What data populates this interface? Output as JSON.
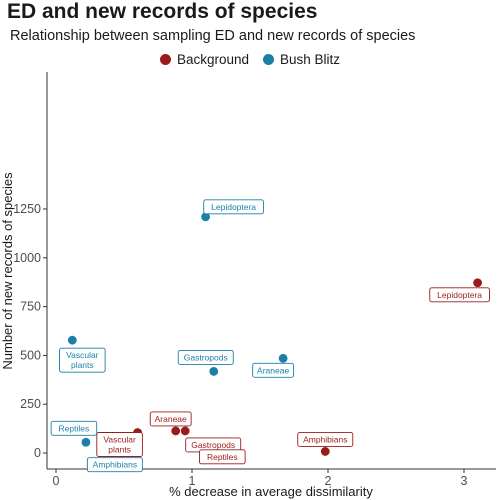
{
  "chart_data": {
    "type": "scatter",
    "title": "ED and new records of species",
    "subtitle": "Relationship between sampling ED and new records of species",
    "xlabel": "% decrease in average dissimilarity",
    "ylabel": "Number of new records of species",
    "xlim": [
      -0.05,
      3.2
    ],
    "ylim": [
      -30,
      1290
    ],
    "x_ticks": [
      0,
      1,
      2,
      3
    ],
    "y_ticks": [
      0,
      250,
      500,
      750,
      1000,
      1250
    ],
    "grid": false,
    "legend_position": "top",
    "series": [
      {
        "name": "Background",
        "color": "#9b1b1b",
        "points": [
          {
            "label": "Lepidoptera",
            "x": 3.1,
            "y": 872
          },
          {
            "label": "Vascular plants",
            "x": 0.6,
            "y": 105
          },
          {
            "label": "Araneae",
            "x": 0.88,
            "y": 113
          },
          {
            "label": "Gastropods",
            "x": 0.95,
            "y": 113
          },
          {
            "label": "Reptiles",
            "x": 1.12,
            "y": 52
          },
          {
            "label": "Amphibians",
            "x": 1.98,
            "y": 8
          }
        ]
      },
      {
        "name": "Bush Blitz",
        "color": "#1b7fa8",
        "points": [
          {
            "label": "Lepidoptera",
            "x": 1.1,
            "y": 1210
          },
          {
            "label": "Vascular plants",
            "x": 0.12,
            "y": 578
          },
          {
            "label": "Araneae",
            "x": 1.67,
            "y": 485
          },
          {
            "label": "Gastropods",
            "x": 1.16,
            "y": 418
          },
          {
            "label": "Reptiles",
            "x": 0.22,
            "y": 55
          },
          {
            "label": "Amphibians",
            "x": 0.33,
            "y": 12
          }
        ]
      }
    ]
  }
}
